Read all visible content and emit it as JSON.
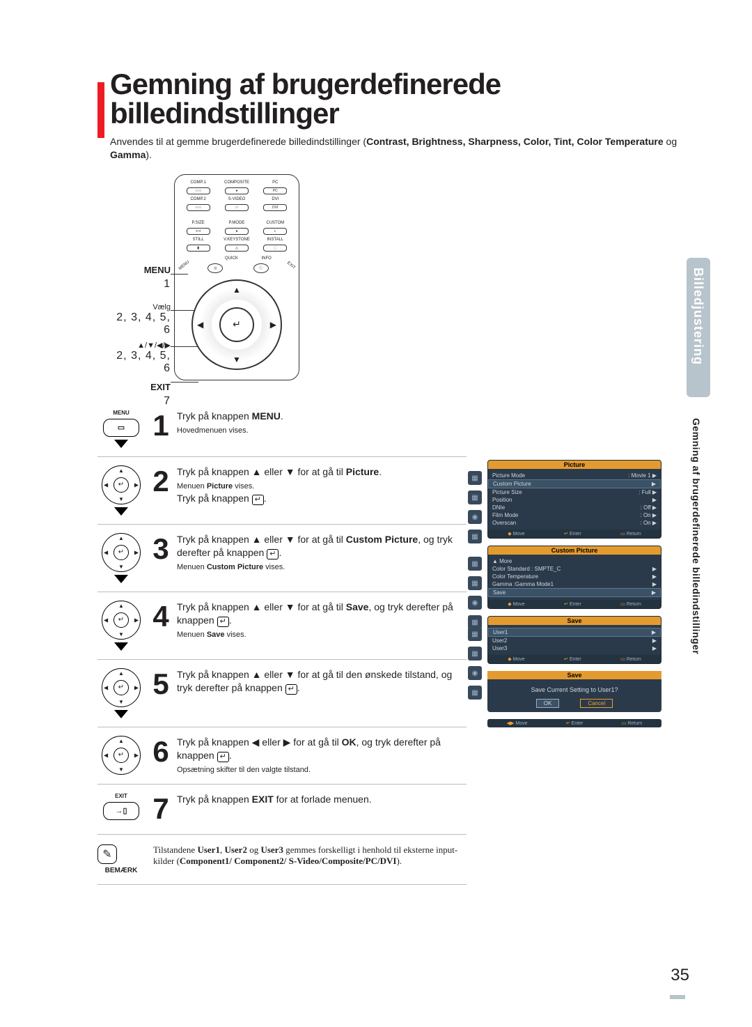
{
  "title": "Gemning af brugerdefinerede billedindstillinger",
  "intro_prefix": "Anvendes til at gemme brugerdefinerede billedindstillinger (",
  "intro_bold_list": "Contrast, Brightness, Sharpness, Color, Tint, Color Temperature",
  "intro_mid": " og ",
  "intro_bold_last": "Gamma",
  "intro_suffix": ").",
  "remote": {
    "row1": [
      "COMP.1",
      "COMPOSITE",
      "PC"
    ],
    "row2": [
      "COMP.2",
      "S-VIDEO",
      "DVI"
    ],
    "row3": [
      "P.SIZE",
      "P.MODE",
      "CUSTOM"
    ],
    "row4": [
      "STILL",
      "V.KEYSTONE",
      "INSTALL"
    ],
    "quick": "QUICK",
    "info": "INFO",
    "menu_corner": "MENU",
    "exit_corner": "EXIT"
  },
  "side_labels": {
    "menu": "MENU",
    "menu_num": "1",
    "vaelg": "Vælg",
    "nums_a": "2, 3, 4, 5, 6",
    "arrows": "▲/▼/◀/▶",
    "nums_b": "2, 3, 4, 5, 6",
    "exit": "EXIT",
    "exit_num": "7"
  },
  "steps": [
    {
      "num": "1",
      "icon": "menu",
      "label": "MENU",
      "text_a": "Tryk på knappen ",
      "bold_a": "MENU",
      "text_b": ".",
      "sub": "Hovedmenuen vises."
    },
    {
      "num": "2",
      "icon": "dpad",
      "text_a": "Tryk på knappen ▲ eller ▼ for at gå til ",
      "bold_a": "Picture",
      "text_b": ".",
      "sub": "Menuen Picture vises.",
      "line2": "Tryk på knappen "
    },
    {
      "num": "3",
      "icon": "dpad",
      "text_a": "Tryk på knappen ▲ eller ▼ for at gå til ",
      "bold_a": "Custom Picture",
      "text_b": ", og tryk derefter på knappen ",
      "sub": "Menuen Custom Picture vises."
    },
    {
      "num": "4",
      "icon": "dpad",
      "text_a": "Tryk på knappen ▲ eller ▼ for at gå til ",
      "bold_a": "Save",
      "text_b": ", og tryk derefter på knappen ",
      "sub": "Menuen Save vises."
    },
    {
      "num": "5",
      "icon": "dpad",
      "text_a": "Tryk på knappen ▲ eller ▼ for at gå til den ønskede tilstand, og tryk derefter på knappen "
    },
    {
      "num": "6",
      "icon": "dpad",
      "text_a": "Tryk på knappen ◀ eller ▶ for at gå til ",
      "bold_a": "OK",
      "text_b": ", og tryk derefter på knappen ",
      "sub": "Opsætning skifter til den valgte tilstand."
    },
    {
      "num": "7",
      "icon": "exit",
      "label": "EXIT",
      "text_a": "Tryk på knappen ",
      "bold_a": "EXIT",
      "text_b": " for at forlade menuen."
    }
  ],
  "osd": {
    "panel1": {
      "head": "Picture",
      "rows": [
        {
          "l": "Picture Mode",
          "r": ": Movie 1",
          "arrow": "▶"
        },
        {
          "l": "Custom Picture",
          "r": "",
          "arrow": "▶",
          "hl": true
        },
        {
          "l": "Picture Size",
          "r": ": Full",
          "arrow": "▶"
        },
        {
          "l": "Position",
          "r": "",
          "arrow": "▶"
        },
        {
          "l": "DNIe",
          "r": ": Off",
          "arrow": "▶"
        },
        {
          "l": "Film Mode",
          "r": ": On",
          "arrow": "▶"
        },
        {
          "l": "Overscan",
          "r": ": On",
          "arrow": "▶"
        }
      ]
    },
    "panel2": {
      "head": "Custom Picture",
      "rows": [
        {
          "l": "▲ More",
          "r": ""
        },
        {
          "l": "Color Standard : SMPTE_C",
          "r": "",
          "arrow": "▶"
        },
        {
          "l": "Color Temperature",
          "r": "",
          "arrow": "▶"
        },
        {
          "l": "Gamma         :Gamma Mode1",
          "r": "",
          "arrow": "▶"
        },
        {
          "l": "Save",
          "r": "",
          "arrow": "▶",
          "hl": true
        }
      ]
    },
    "panel3": {
      "head": "Save",
      "rows": [
        {
          "l": "User1",
          "r": "",
          "arrow": "▶",
          "hl": true
        },
        {
          "l": "User2",
          "r": "",
          "arrow": "▶"
        },
        {
          "l": "User3",
          "r": "",
          "arrow": "▶"
        }
      ]
    },
    "confirm": {
      "head": "Save",
      "msg": "Save Current Setting to User1?",
      "ok": "OK",
      "cancel": "Cancel"
    },
    "foot": {
      "move": "Move",
      "enter": "Enter",
      "return": "Return"
    }
  },
  "side_tab": "Billedjustering",
  "side_running": "Gemning af brugerdefinerede billedindstillinger",
  "note": {
    "label": "BEMÆRK",
    "t1": "Tilstandene ",
    "b1": "User1",
    "t2": ", ",
    "b2": "User2",
    "t3": " og ",
    "b3": "User3",
    "t4": " gemmes forskelligt i henhold til eksterne input-kilder (",
    "b4": "Component1/ Component2/ S-Video/Composite/PC/DVI",
    "t5": ")."
  },
  "page_num": "35",
  "colors": {
    "accent_red": "#ed1c24",
    "osd_bg": "#2b3a4a",
    "osd_head": "#e39b2f",
    "side_tab": "#b8c4cc"
  }
}
